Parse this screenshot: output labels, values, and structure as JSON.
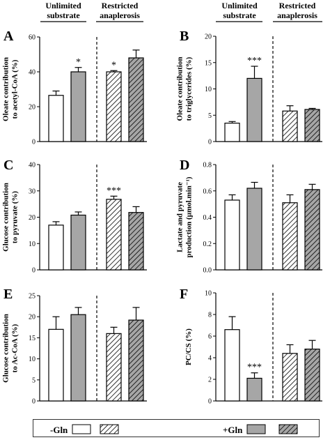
{
  "header": {
    "left": [
      "Unlimited",
      "substrate"
    ],
    "right": [
      "Restricted",
      "anaplerosis"
    ]
  },
  "colors": {
    "control": "#ffffff",
    "gln": "#a6a6a6",
    "stroke": "#000000"
  },
  "legend": {
    "minus_label": "-Gln",
    "plus_label": "+Gln"
  },
  "chart_data": [
    {
      "panel": "A",
      "type": "bar",
      "ylabel": [
        "Oleate contribution",
        "to acetyl-CoA (%)"
      ],
      "ylim": [
        0,
        60
      ],
      "yticks": [
        0,
        20,
        40,
        60
      ],
      "categories": [
        "-Gln",
        "+Gln",
        "-Gln (restricted)",
        "+Gln (restricted)"
      ],
      "values": [
        26.5,
        40.0,
        40.0,
        48.0
      ],
      "errors": [
        2.5,
        2.5,
        0.7,
        4.5
      ],
      "annotations": [
        "",
        "*",
        "*",
        ""
      ]
    },
    {
      "panel": "B",
      "type": "bar",
      "ylabel": [
        "Oleate contribution",
        "to triglycerides (%)"
      ],
      "ylim": [
        0,
        20
      ],
      "yticks": [
        0,
        5,
        10,
        15,
        20
      ],
      "categories": [
        "-Gln",
        "+Gln",
        "-Gln (restricted)",
        "+Gln (restricted)"
      ],
      "values": [
        3.5,
        12.0,
        5.8,
        6.1
      ],
      "errors": [
        0.3,
        2.3,
        1.0,
        0.2
      ],
      "annotations": [
        "",
        "***",
        "",
        ""
      ]
    },
    {
      "panel": "C",
      "type": "bar",
      "ylabel": [
        "Glucose contribution",
        "to pyruvate (%)"
      ],
      "ylim": [
        0,
        40
      ],
      "yticks": [
        0,
        10,
        20,
        30,
        40
      ],
      "categories": [
        "-Gln",
        "+Gln",
        "-Gln (restricted)",
        "+Gln (restricted)"
      ],
      "values": [
        17.0,
        20.8,
        26.8,
        21.8
      ],
      "errors": [
        1.3,
        1.2,
        1.2,
        2.2
      ],
      "annotations": [
        "",
        "",
        "***",
        ""
      ]
    },
    {
      "panel": "D",
      "type": "bar",
      "ylabel": [
        "Lactate and pyruvate",
        "production (µmol.min⁻¹)"
      ],
      "ylim": [
        0,
        0.8
      ],
      "yticks": [
        0.0,
        0.2,
        0.4,
        0.6,
        0.8
      ],
      "tick_decimals": 1,
      "categories": [
        "-Gln",
        "+Gln",
        "-Gln (restricted)",
        "+Gln (restricted)"
      ],
      "values": [
        0.53,
        0.62,
        0.51,
        0.61
      ],
      "errors": [
        0.04,
        0.045,
        0.06,
        0.04
      ],
      "annotations": [
        "",
        "",
        "",
        ""
      ]
    },
    {
      "panel": "E",
      "type": "bar",
      "ylabel": [
        "Glucose contribution",
        "to Ac-CoA (%)"
      ],
      "ylim": [
        0,
        25
      ],
      "yticks": [
        0,
        5,
        10,
        15,
        20,
        25
      ],
      "categories": [
        "-Gln",
        "+Gln",
        "-Gln (restricted)",
        "+Gln (restricted)"
      ],
      "values": [
        17.0,
        20.5,
        16.0,
        19.2
      ],
      "errors": [
        3.0,
        1.7,
        1.5,
        3.0
      ],
      "annotations": [
        "",
        "",
        "",
        ""
      ]
    },
    {
      "panel": "F",
      "type": "bar",
      "ylabel": [
        "PC/CS (%)"
      ],
      "ylim": [
        0,
        10
      ],
      "yticks": [
        0,
        2,
        4,
        6,
        8,
        10
      ],
      "categories": [
        "-Gln",
        "+Gln",
        "-Gln (restricted)",
        "+Gln (restricted)"
      ],
      "values": [
        6.6,
        2.1,
        4.4,
        4.8
      ],
      "errors": [
        1.2,
        0.5,
        0.8,
        0.8
      ],
      "annotations": [
        "",
        "***",
        "",
        ""
      ]
    }
  ]
}
